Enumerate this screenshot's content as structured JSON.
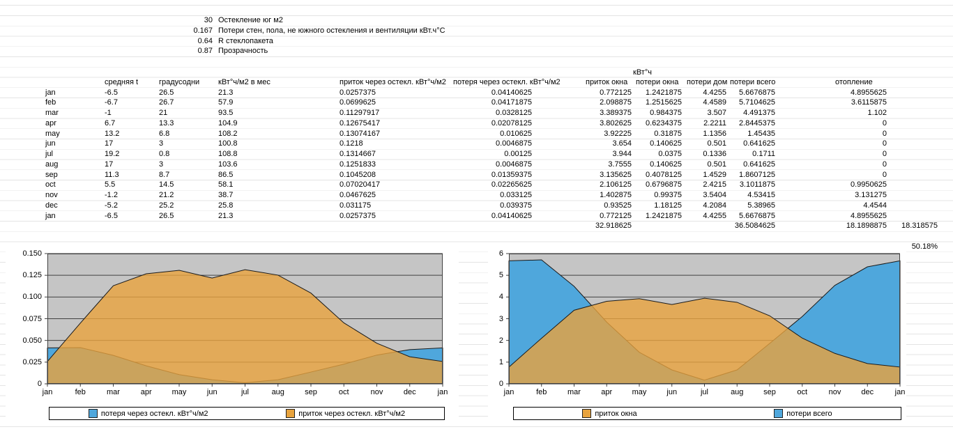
{
  "params": [
    {
      "value": "30",
      "label": "Остекление юг м2"
    },
    {
      "value": "0.167",
      "label": "Потери стен, пола, не южного остекления и вентиляции кВт.ч°С"
    },
    {
      "value": "0.64",
      "label": "R стеклопакета"
    },
    {
      "value": "0.87",
      "label": "Прозрачность"
    }
  ],
  "table": {
    "group_header": "кВт°ч",
    "columns": [
      "",
      "средняя t",
      "градусодни",
      "кВт°ч/м2 в мес",
      "приток через остекл. кВт°ч/м2",
      "потеря через остекл. кВт°ч/м2",
      "приток окна",
      "потери окна",
      "потери дом",
      "потери всего",
      "отопление",
      ""
    ],
    "rows": [
      [
        "jan",
        "-6.5",
        "26.5",
        "21.3",
        "0.0257375",
        "0.04140625",
        "0.772125",
        "1.2421875",
        "4.4255",
        "5.6676875",
        "4.8955625"
      ],
      [
        "feb",
        "-6.7",
        "26.7",
        "57.9",
        "0.0699625",
        "0.04171875",
        "2.098875",
        "1.2515625",
        "4.4589",
        "5.7104625",
        "3.6115875"
      ],
      [
        "mar",
        "-1",
        "21",
        "93.5",
        "0.11297917",
        "0.0328125",
        "3.389375",
        "0.984375",
        "3.507",
        "4.491375",
        "1.102"
      ],
      [
        "apr",
        "6.7",
        "13.3",
        "104.9",
        "0.12675417",
        "0.02078125",
        "3.802625",
        "0.6234375",
        "2.2211",
        "2.8445375",
        "0"
      ],
      [
        "may",
        "13.2",
        "6.8",
        "108.2",
        "0.13074167",
        "0.010625",
        "3.92225",
        "0.31875",
        "1.1356",
        "1.45435",
        "0"
      ],
      [
        "jun",
        "17",
        "3",
        "100.8",
        "0.1218",
        "0.0046875",
        "3.654",
        "0.140625",
        "0.501",
        "0.641625",
        "0"
      ],
      [
        "jul",
        "19.2",
        "0.8",
        "108.8",
        "0.1314667",
        "0.00125",
        "3.944",
        "0.0375",
        "0.1336",
        "0.1711",
        "0"
      ],
      [
        "aug",
        "17",
        "3",
        "103.6",
        "0.1251833",
        "0.0046875",
        "3.7555",
        "0.140625",
        "0.501",
        "0.641625",
        "0"
      ],
      [
        "sep",
        "11.3",
        "8.7",
        "86.5",
        "0.1045208",
        "0.01359375",
        "3.135625",
        "0.4078125",
        "1.4529",
        "1.8607125",
        "0"
      ],
      [
        "oct",
        "5.5",
        "14.5",
        "58.1",
        "0.07020417",
        "0.02265625",
        "2.106125",
        "0.6796875",
        "2.4215",
        "3.1011875",
        "0.9950625"
      ],
      [
        "nov",
        "-1.2",
        "21.2",
        "38.7",
        "0.0467625",
        "0.033125",
        "1.402875",
        "0.99375",
        "3.5404",
        "4.53415",
        "3.131275"
      ],
      [
        "dec",
        "-5.2",
        "25.2",
        "25.8",
        "0.031175",
        "0.039375",
        "0.93525",
        "1.18125",
        "4.2084",
        "5.38965",
        "4.4544"
      ],
      [
        "jan",
        "-6.5",
        "26.5",
        "21.3",
        "0.0257375",
        "0.04140625",
        "0.772125",
        "1.2421875",
        "4.4255",
        "5.6676875",
        "4.8955625"
      ]
    ],
    "totals_row": [
      "",
      "",
      "",
      "",
      "",
      "",
      "32.918625",
      "",
      "",
      "36.5084625",
      "18.1898875",
      "18.318575"
    ],
    "percent": "50.18%"
  },
  "chart_data": [
    {
      "type": "area",
      "x": [
        "jan",
        "feb",
        "mar",
        "apr",
        "may",
        "jun",
        "jul",
        "aug",
        "sep",
        "oct",
        "nov",
        "dec",
        "jan"
      ],
      "series": [
        {
          "name": "потеря через остекл. кВт°ч/м2",
          "color": "#4fa7dc",
          "values": [
            0.04140625,
            0.04171875,
            0.0328125,
            0.02078125,
            0.010625,
            0.0046875,
            0.00125,
            0.0046875,
            0.01359375,
            0.02265625,
            0.033125,
            0.039375,
            0.04140625
          ]
        },
        {
          "name": "приток через остекл. кВт°ч/м2",
          "color": "#e8a33d",
          "values": [
            0.0257375,
            0.0699625,
            0.11297917,
            0.12675417,
            0.13074167,
            0.1218,
            0.1314667,
            0.1251833,
            0.1045208,
            0.07020417,
            0.0467625,
            0.031175,
            0.0257375
          ]
        }
      ],
      "ylim": [
        0,
        0.15
      ],
      "yticks": [
        "0.150",
        "0.125",
        "0.100",
        "0.075",
        "0.050",
        "0.025",
        "0"
      ],
      "ytick_values": [
        0.15,
        0.125,
        0.1,
        0.075,
        0.05,
        0.025,
        0
      ],
      "plot_bg": "#c5c5c5",
      "legend": [
        {
          "color": "#4fa7dc",
          "label": "потеря через остекл. кВт°ч/м2"
        },
        {
          "color": "#e8a33d",
          "label": "приток через остекл. кВт°ч/м2"
        }
      ],
      "grid": true,
      "legend_position": "bottom"
    },
    {
      "type": "area",
      "x": [
        "jan",
        "feb",
        "mar",
        "apr",
        "may",
        "jun",
        "jul",
        "aug",
        "sep",
        "oct",
        "nov",
        "dec",
        "jan"
      ],
      "series": [
        {
          "name": "потери всего",
          "color": "#4fa7dc",
          "values": [
            5.6676875,
            5.7104625,
            4.491375,
            2.8445375,
            1.45435,
            0.641625,
            0.1711,
            0.641625,
            1.8607125,
            3.1011875,
            4.53415,
            5.38965,
            5.6676875
          ]
        },
        {
          "name": "приток окна",
          "color": "#e8a33d",
          "values": [
            0.772125,
            2.098875,
            3.389375,
            3.802625,
            3.92225,
            3.654,
            3.944,
            3.7555,
            3.135625,
            2.106125,
            1.402875,
            0.93525,
            0.772125
          ]
        }
      ],
      "ylim": [
        0,
        6
      ],
      "yticks": [
        "6",
        "5",
        "4",
        "3",
        "2",
        "1",
        "0"
      ],
      "ytick_values": [
        6,
        5,
        4,
        3,
        2,
        1,
        0
      ],
      "plot_bg": "#c5c5c5",
      "legend": [
        {
          "color": "#e8a33d",
          "label": "приток окна"
        },
        {
          "color": "#4fa7dc",
          "label": "потери всего"
        }
      ],
      "grid": true,
      "legend_position": "bottom"
    }
  ]
}
